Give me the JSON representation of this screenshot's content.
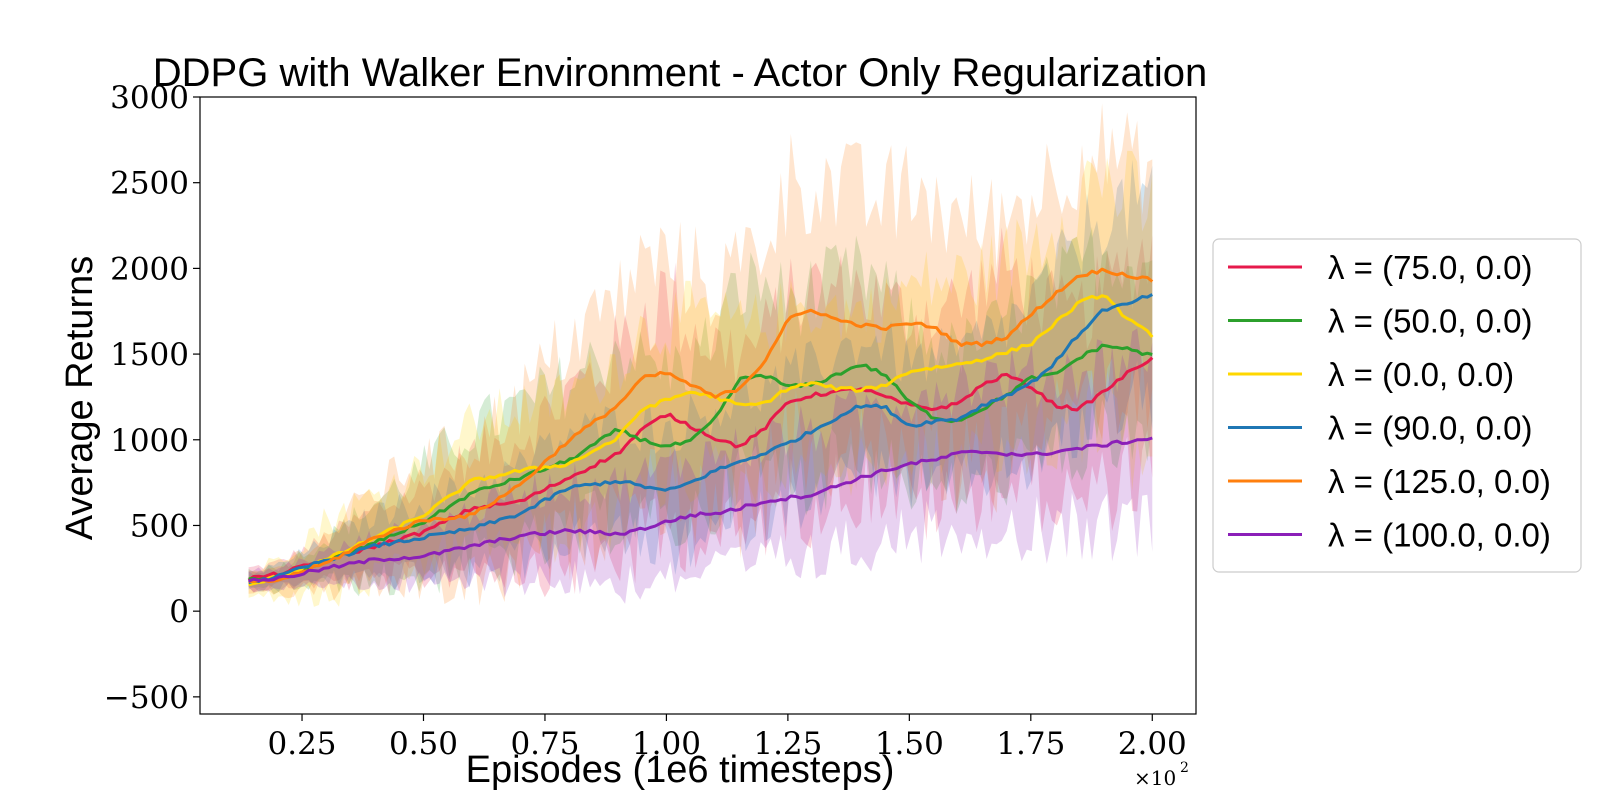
{
  "chart_data": {
    "type": "line",
    "title": "DDPG with Walker Environment - Actor Only Regularization",
    "xlabel": "Episodes (1e6 timesteps)",
    "ylabel": "Average Returns",
    "x_multiplier": "×10",
    "x_multiplier_exp": "2",
    "xlim": [
      0.04,
      2.09
    ],
    "ylim": [
      -600,
      3000
    ],
    "x_ticks": [
      0.25,
      0.5,
      0.75,
      1.0,
      1.25,
      1.5,
      1.75,
      2.0
    ],
    "x_tick_labels": [
      "0.25",
      "0.50",
      "0.75",
      "1.00",
      "1.25",
      "1.50",
      "1.75",
      "2.00"
    ],
    "y_ticks": [
      -500,
      0,
      500,
      1000,
      1500,
      2000,
      2500,
      3000
    ],
    "y_tick_labels": [
      "−500",
      "0",
      "500",
      "1000",
      "1500",
      "2000",
      "2500",
      "3000"
    ],
    "grid": false,
    "legend_position": "outside-right",
    "x": [
      0.14,
      0.2,
      0.3,
      0.4,
      0.5,
      0.6,
      0.7,
      0.8,
      0.9,
      0.95,
      1.0,
      1.05,
      1.1,
      1.15,
      1.2,
      1.25,
      1.3,
      1.35,
      1.4,
      1.45,
      1.5,
      1.55,
      1.6,
      1.65,
      1.7,
      1.75,
      1.8,
      1.85,
      1.9,
      1.95,
      2.0
    ],
    "series": [
      {
        "name": "λ = (75.0, 0.0)",
        "color": "#e6194b",
        "values": [
          190,
          215,
          300,
          380,
          460,
          600,
          640,
          780,
          920,
          1060,
          1150,
          1080,
          1010,
          960,
          1060,
          1220,
          1260,
          1280,
          1300,
          1250,
          1200,
          1180,
          1210,
          1320,
          1380,
          1310,
          1200,
          1180,
          1280,
          1390,
          1480
        ],
        "spread": [
          70,
          80,
          150,
          250,
          300,
          380,
          450,
          600,
          700,
          800,
          850,
          700,
          650,
          650,
          650,
          700,
          750,
          700,
          700,
          650,
          650,
          700,
          700,
          700,
          750,
          700,
          650,
          650,
          700,
          750,
          800
        ]
      },
      {
        "name": "λ = (50.0, 0.0)",
        "color": "#2ca02c",
        "values": [
          180,
          190,
          290,
          400,
          520,
          690,
          780,
          880,
          1060,
          1000,
          960,
          990,
          1120,
          1350,
          1380,
          1310,
          1320,
          1380,
          1440,
          1380,
          1220,
          1130,
          1110,
          1180,
          1260,
          1360,
          1380,
          1480,
          1550,
          1530,
          1490
        ],
        "spread": [
          70,
          80,
          150,
          280,
          380,
          450,
          500,
          550,
          600,
          550,
          550,
          550,
          600,
          650,
          650,
          600,
          650,
          650,
          650,
          600,
          550,
          500,
          500,
          500,
          550,
          600,
          600,
          650,
          650,
          650,
          650
        ]
      },
      {
        "name": "λ = (0.0, 0.0)",
        "color": "#ffd700",
        "values": [
          150,
          200,
          300,
          430,
          560,
          760,
          820,
          860,
          1010,
          1180,
          1230,
          1280,
          1250,
          1200,
          1210,
          1300,
          1330,
          1300,
          1290,
          1320,
          1400,
          1420,
          1440,
          1470,
          1510,
          1560,
          1680,
          1800,
          1850,
          1700,
          1610
        ],
        "spread": [
          80,
          130,
          280,
          300,
          350,
          400,
          450,
          500,
          550,
          550,
          550,
          550,
          550,
          550,
          550,
          550,
          550,
          550,
          550,
          550,
          600,
          600,
          600,
          600,
          650,
          700,
          750,
          800,
          850,
          850,
          850
        ]
      },
      {
        "name": "λ = (90.0, 0.0)",
        "color": "#1f77b4",
        "values": [
          170,
          200,
          300,
          380,
          430,
          480,
          570,
          720,
          760,
          730,
          700,
          750,
          820,
          870,
          920,
          980,
          1050,
          1130,
          1200,
          1190,
          1080,
          1110,
          1120,
          1200,
          1260,
          1330,
          1450,
          1620,
          1760,
          1790,
          1850
        ],
        "spread": [
          60,
          80,
          130,
          220,
          260,
          300,
          330,
          380,
          400,
          420,
          430,
          450,
          450,
          450,
          450,
          450,
          450,
          450,
          460,
          450,
          430,
          450,
          450,
          480,
          500,
          550,
          600,
          650,
          700,
          700,
          700
        ]
      },
      {
        "name": "λ = (125.0, 0.0)",
        "color": "#ff7f0e",
        "values": [
          165,
          180,
          280,
          430,
          530,
          560,
          740,
          1000,
          1200,
          1360,
          1390,
          1320,
          1250,
          1300,
          1450,
          1700,
          1760,
          1700,
          1670,
          1650,
          1680,
          1660,
          1560,
          1560,
          1600,
          1730,
          1850,
          1960,
          1990,
          1960,
          1930
        ],
        "spread": [
          60,
          90,
          190,
          340,
          420,
          500,
          600,
          700,
          750,
          800,
          800,
          800,
          800,
          850,
          900,
          950,
          950,
          900,
          900,
          900,
          900,
          900,
          850,
          850,
          850,
          850,
          850,
          850,
          850,
          800,
          800
        ]
      },
      {
        "name": "λ = (100.0, 0.0)",
        "color": "#8b1fb8",
        "values": [
          180,
          190,
          250,
          300,
          320,
          380,
          440,
          470,
          450,
          480,
          520,
          560,
          570,
          600,
          640,
          660,
          680,
          730,
          780,
          820,
          860,
          880,
          920,
          930,
          920,
          910,
          930,
          950,
          970,
          990,
          1010
        ],
        "spread": [
          60,
          70,
          110,
          160,
          200,
          250,
          300,
          330,
          350,
          370,
          380,
          400,
          420,
          420,
          430,
          440,
          450,
          460,
          470,
          480,
          490,
          500,
          510,
          520,
          530,
          540,
          550,
          560,
          570,
          590,
          620
        ]
      }
    ]
  }
}
